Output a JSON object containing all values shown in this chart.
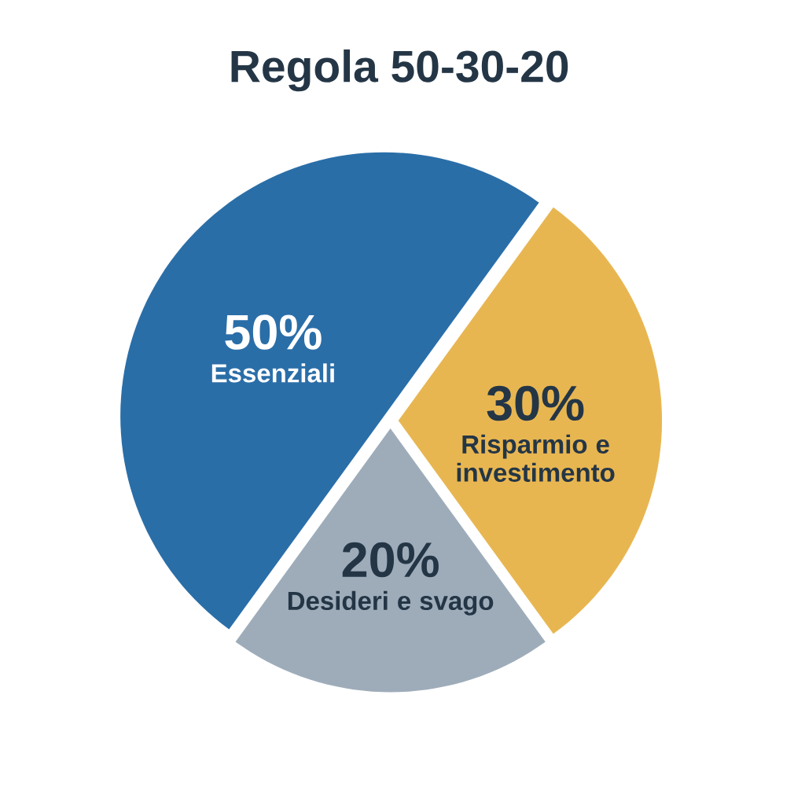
{
  "chart_data": {
    "type": "pie",
    "title": "Regola 50-30-20",
    "categories": [
      "Essenziali",
      "Risparmio e investimento",
      "Desideri e svago"
    ],
    "values": [
      50,
      30,
      20
    ],
    "value_labels": [
      "50%",
      "30%",
      "20%"
    ],
    "colors": [
      "#2a6ea8",
      "#e8b651",
      "#9eacba"
    ]
  }
}
